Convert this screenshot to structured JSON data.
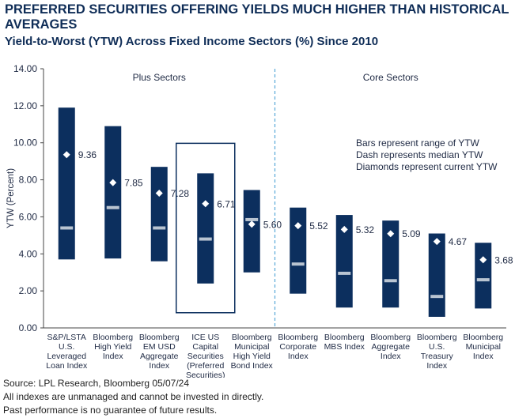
{
  "header": {
    "title": "PREFERRED SECURITIES OFFERING YIELDS MUCH HIGHER THAN HISTORICAL AVERAGES",
    "subtitle": "Yield-to-Worst (YTW) Across Fixed Income Sectors (%) Since 2010"
  },
  "footer": {
    "source": "Source: LPL Research, Bloomberg 05/07/24",
    "note1": "All indexes are unmanaged and cannot be invested in directly.",
    "note2": "Past performance is no guarantee of future results."
  },
  "colors": {
    "bar": "#0c2f5e",
    "dash": "#b9c4d1",
    "diamond": "#ffffff",
    "divider": "#58a9d8",
    "text": "#1f2a44"
  },
  "chart_data": {
    "type": "range-bar",
    "ylabel": "YTW (Percent)",
    "ylim": [
      0,
      14
    ],
    "yticks": [
      "0.00",
      "2.00",
      "4.00",
      "6.00",
      "8.00",
      "10.00",
      "12.00",
      "14.00"
    ],
    "groups": [
      "Plus Sectors",
      "Core Sectors"
    ],
    "legend_lines": [
      "Bars represent range of YTW",
      "Dash represents median YTW",
      "Diamonds represent current YTW"
    ],
    "categories": [
      {
        "label": [
          "S&P/LSTA",
          "U.S.",
          "Leveraged",
          "Loan Index"
        ],
        "low": 3.7,
        "high": 11.9,
        "median": 5.4,
        "current": 9.36,
        "current_label": "9.36",
        "group": "Plus Sectors",
        "highlight": false
      },
      {
        "label": [
          "Bloomberg",
          "High Yield",
          "Index"
        ],
        "low": 3.75,
        "high": 10.9,
        "median": 6.5,
        "current": 7.85,
        "current_label": "7.85",
        "group": "Plus Sectors",
        "highlight": false
      },
      {
        "label": [
          "Bloomberg",
          "EM USD",
          "Aggregate",
          "Index"
        ],
        "low": 3.6,
        "high": 8.7,
        "median": 5.4,
        "current": 7.28,
        "current_label": "7.28",
        "group": "Plus Sectors",
        "highlight": false
      },
      {
        "label": [
          "ICE US",
          "Capital",
          "Securities",
          "(Preferred",
          "Securities)"
        ],
        "low": 2.4,
        "high": 8.35,
        "median": 4.8,
        "current": 6.71,
        "current_label": "6.71",
        "group": "Plus Sectors",
        "highlight": true
      },
      {
        "label": [
          "Bloomberg",
          "Municipal",
          "High Yield",
          "Bond Index"
        ],
        "low": 3.0,
        "high": 7.45,
        "median": 5.85,
        "current": 5.6,
        "current_label": "5.60",
        "group": "Plus Sectors",
        "highlight": false
      },
      {
        "label": [
          "Bloomberg",
          "Corporate",
          "Index"
        ],
        "low": 1.85,
        "high": 6.5,
        "median": 3.45,
        "current": 5.52,
        "current_label": "5.52",
        "group": "Core Sectors",
        "highlight": false
      },
      {
        "label": [
          "Bloomberg",
          "MBS Index"
        ],
        "low": 1.1,
        "high": 6.1,
        "median": 2.95,
        "current": 5.32,
        "current_label": "5.32",
        "group": "Core Sectors",
        "highlight": false
      },
      {
        "label": [
          "Bloomberg",
          "Aggregate",
          "Index"
        ],
        "low": 1.1,
        "high": 5.8,
        "median": 2.55,
        "current": 5.09,
        "current_label": "5.09",
        "group": "Core Sectors",
        "highlight": false
      },
      {
        "label": [
          "Bloomberg",
          "U.S.",
          "Treasury",
          "Index"
        ],
        "low": 0.6,
        "high": 5.1,
        "median": 1.7,
        "current": 4.67,
        "current_label": "4.67",
        "group": "Core Sectors",
        "highlight": false
      },
      {
        "label": [
          "Bloomberg",
          "Municipal",
          "Index"
        ],
        "low": 1.05,
        "high": 4.6,
        "median": 2.6,
        "current": 3.68,
        "current_label": "3.68",
        "group": "Core Sectors",
        "highlight": false
      }
    ]
  }
}
